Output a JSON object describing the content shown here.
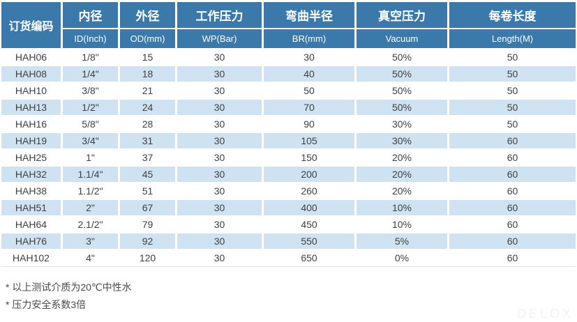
{
  "colors": {
    "header_bg": "#3a79a9",
    "header_text": "#ffffff",
    "alt_row_bg": "#cfe2f1",
    "cell_text": "#3f3f3f",
    "note_text": "#4a4a4a",
    "watermark_text": "#f2f2f2"
  },
  "table": {
    "columns": [
      {
        "cn": "订货编码",
        "en": ""
      },
      {
        "cn": "内径",
        "en": "ID(Inch)"
      },
      {
        "cn": "外径",
        "en": "OD(mm)"
      },
      {
        "cn": "工作压力",
        "en": "WP(Bar)"
      },
      {
        "cn": "弯曲半径",
        "en": "BR(mm)"
      },
      {
        "cn": "真空压力",
        "en": "Vacuum"
      },
      {
        "cn": "每卷长度",
        "en": "Length(M)"
      }
    ],
    "rows": [
      [
        "HAH06",
        "1/8\"",
        "15",
        "30",
        "30",
        "50%",
        "50"
      ],
      [
        "HAH08",
        "1/4\"",
        "18",
        "30",
        "40",
        "50%",
        "50"
      ],
      [
        "HAH10",
        "3/8\"",
        "21",
        "30",
        "50",
        "50%",
        "50"
      ],
      [
        "HAH13",
        "1/2\"",
        "24",
        "30",
        "70",
        "50%",
        "50"
      ],
      [
        "HAH16",
        "5/8\"",
        "28",
        "30",
        "90",
        "30%",
        "50"
      ],
      [
        "HAH19",
        "3/4\"",
        "31",
        "30",
        "105",
        "30%",
        "60"
      ],
      [
        "HAH25",
        "1\"",
        "37",
        "30",
        "150",
        "20%",
        "60"
      ],
      [
        "HAH32",
        "1.1/4\"",
        "45",
        "30",
        "200",
        "20%",
        "60"
      ],
      [
        "HAH38",
        "1.1/2\"",
        "51",
        "30",
        "260",
        "20%",
        "60"
      ],
      [
        "HAH51",
        "2\"",
        "67",
        "30",
        "400",
        "10%",
        "60"
      ],
      [
        "HAH64",
        "2.1/2\"",
        "79",
        "30",
        "450",
        "10%",
        "60"
      ],
      [
        "HAH76",
        "3\"",
        "92",
        "30",
        "550",
        "5%",
        "60"
      ],
      [
        "HAH102",
        "4\"",
        "120",
        "30",
        "650",
        "0%",
        "60"
      ]
    ]
  },
  "notes": [
    "* 以上测试介质为20℃中性水",
    "* 压力安全系数3倍"
  ],
  "watermark": "DELOX"
}
